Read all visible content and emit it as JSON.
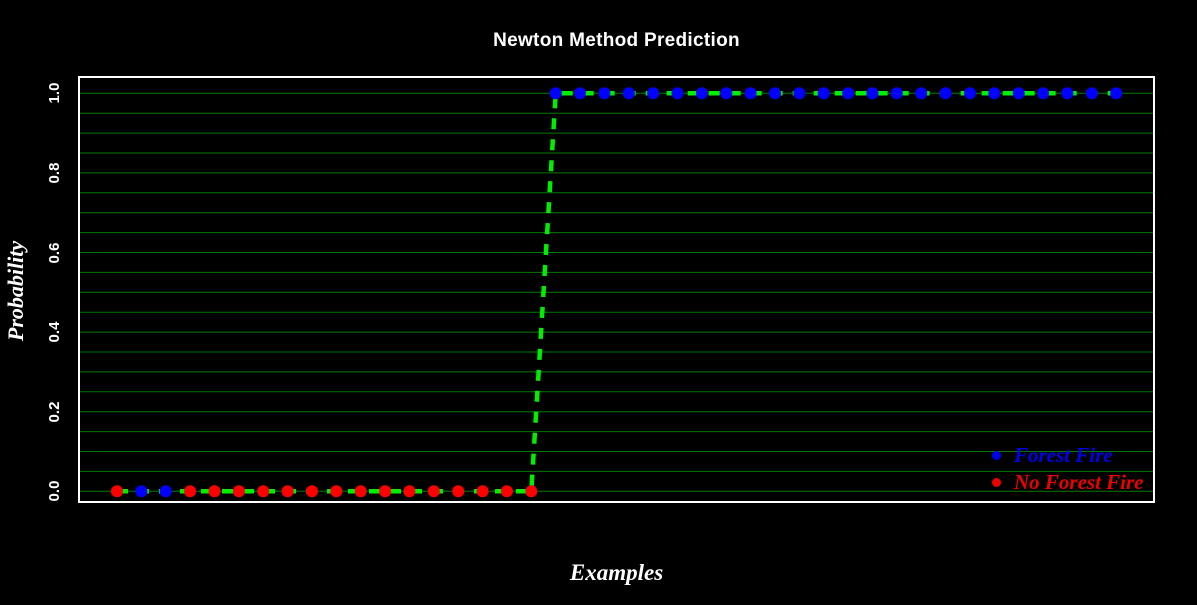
{
  "title": "Newton Method Prediction",
  "chart_data": {
    "type": "line",
    "title": "Newton Method Prediction",
    "xlabel": "Examples",
    "ylabel": "Probability",
    "ylim": [
      0.0,
      1.0
    ],
    "x": [
      1,
      2,
      3,
      4,
      5,
      6,
      7,
      8,
      9,
      10,
      11,
      12,
      13,
      14,
      15,
      16,
      17,
      18,
      19,
      20,
      21,
      22,
      23,
      24,
      25,
      26,
      27,
      28,
      29,
      30,
      31,
      32,
      33,
      34,
      35,
      36,
      37,
      38,
      39,
      40,
      41,
      42
    ],
    "y": [
      0,
      0,
      0,
      0,
      0,
      0,
      0,
      0,
      0,
      0,
      0,
      0,
      0,
      0,
      0,
      0,
      0,
      0,
      1,
      1,
      1,
      1,
      1,
      1,
      1,
      1,
      1,
      1,
      1,
      1,
      1,
      1,
      1,
      1,
      1,
      1,
      1,
      1,
      1,
      1,
      1,
      1
    ],
    "point_class": [
      "no_fire",
      "fire",
      "fire",
      "no_fire",
      "no_fire",
      "no_fire",
      "no_fire",
      "no_fire",
      "no_fire",
      "no_fire",
      "no_fire",
      "no_fire",
      "no_fire",
      "no_fire",
      "no_fire",
      "no_fire",
      "no_fire",
      "no_fire",
      "fire",
      "fire",
      "fire",
      "fire",
      "fire",
      "fire",
      "fire",
      "fire",
      "fire",
      "fire",
      "fire",
      "fire",
      "fire",
      "fire",
      "fire",
      "fire",
      "fire",
      "fire",
      "fire",
      "fire",
      "fire",
      "fire",
      "fire",
      "fire"
    ],
    "classes": {
      "fire": {
        "label": "Forest Fire",
        "color": "#0000ff"
      },
      "no_fire": {
        "label": "No Forest Fire",
        "color": "#ff0000"
      }
    },
    "line_color": "#00ee00",
    "line_style": "dashed",
    "grid": {
      "color": "#007a00",
      "step": 0.05,
      "orientation": "horizontal"
    },
    "y_ticks": [
      {
        "value": 0.0,
        "label": "0.0"
      },
      {
        "value": 0.2,
        "label": "0.2"
      },
      {
        "value": 0.4,
        "label": "0.4"
      },
      {
        "value": 0.6,
        "label": "0.6"
      },
      {
        "value": 0.8,
        "label": "0.8"
      },
      {
        "value": 1.0,
        "label": "1.0"
      }
    ],
    "legend_position": "bottom-right"
  },
  "legend": [
    {
      "label": "Forest Fire",
      "color": "#0000ee"
    },
    {
      "label": "No Forest Fire",
      "color": "#ee0000"
    }
  ],
  "colors": {
    "background": "#000000",
    "text": "#ffffff",
    "plot_border": "#ffffff"
  }
}
